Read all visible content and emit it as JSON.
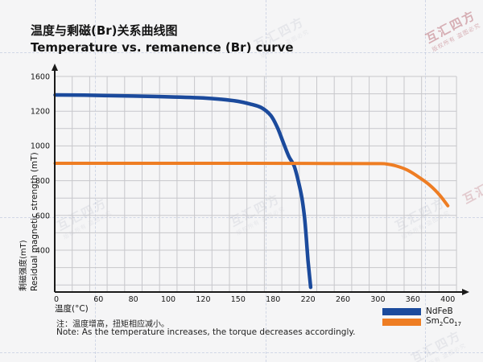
{
  "title": {
    "zh": "温度与剩磁(Br)关系曲线图",
    "en": "Temperature vs. remanence (Br) curve"
  },
  "axes": {
    "y_label_zh": "剩磁强度(mT)",
    "y_label_en": "Residual magnetic strength (mT)",
    "x_label": "温度(°C)"
  },
  "chart_data": {
    "type": "line",
    "title": "Temperature vs. remanence (Br) curve",
    "xlabel": "温度(°C)",
    "ylabel": "Residual magnetic strength (mT)",
    "x_ticks": [
      0,
      60,
      80,
      100,
      120,
      150,
      180,
      220,
      260,
      300,
      360,
      400
    ],
    "y_ticks": [
      0,
      400,
      600,
      800,
      1000,
      1200,
      1600
    ],
    "grid": true,
    "legend_position": "bottom-right",
    "series": [
      {
        "name": "NdFeB",
        "color": "#1b4a9c",
        "points": [
          [
            0,
            1387
          ],
          [
            40,
            1384
          ],
          [
            80,
            1374
          ],
          [
            100,
            1365
          ],
          [
            120,
            1352
          ],
          [
            135,
            1337
          ],
          [
            150,
            1313
          ],
          [
            160,
            1283
          ],
          [
            170,
            1240
          ],
          [
            178,
            1175
          ],
          [
            185,
            1105
          ],
          [
            192,
            1015
          ],
          [
            198,
            940
          ],
          [
            204,
            886
          ],
          [
            209,
            795
          ],
          [
            213,
            700
          ],
          [
            216,
            590
          ],
          [
            218,
            470
          ],
          [
            220,
            300
          ],
          [
            222,
            130
          ],
          [
            223,
            45
          ]
        ]
      },
      {
        "name": "Sm2Co17",
        "color": "#ee7d23",
        "points": [
          [
            0,
            900
          ],
          [
            80,
            900
          ],
          [
            160,
            900
          ],
          [
            240,
            899
          ],
          [
            300,
            898
          ],
          [
            315,
            896
          ],
          [
            330,
            886
          ],
          [
            350,
            862
          ],
          [
            367,
            820
          ],
          [
            380,
            772
          ],
          [
            391,
            716
          ],
          [
            400,
            657
          ]
        ]
      }
    ]
  },
  "legend": {
    "ndfeb": {
      "label": "NdFeB",
      "color": "#1b4a9c"
    },
    "sm2co17": {
      "pre": "Sm",
      "sub1": "2",
      "mid": "Co",
      "sub2": "17",
      "color": "#ee7d23"
    }
  },
  "notes": {
    "zh": "注：温度增高，扭矩相应减小。",
    "en": "Note: As the temperature increases, the torque decreases accordingly."
  },
  "watermark": {
    "brand": "互汇四方",
    "claim": "版权所有 盗图必究"
  },
  "colors": {
    "ndfeb": "#1b4a9c",
    "sm2co17": "#ee7d23",
    "axis": "#1a1a1a",
    "grid": "#c7c7cb",
    "background": "#f5f5f6"
  }
}
